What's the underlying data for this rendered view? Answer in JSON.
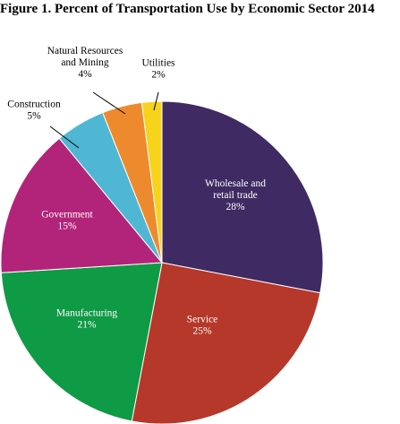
{
  "chart_data": {
    "type": "pie",
    "title": "Figure 1. Percent of Transportation Use by Economic Sector 2014",
    "slices": [
      {
        "name": "Wholesale and retail trade",
        "label_lines": [
          "Wholesale and",
          "retail trade"
        ],
        "pct_label": "28%",
        "value": 28,
        "color": "#3f2a63",
        "text_color": "#ffffff"
      },
      {
        "name": "Service",
        "label_lines": [
          "Service"
        ],
        "pct_label": "25%",
        "value": 25,
        "color": "#b5382b",
        "text_color": "#ffffff"
      },
      {
        "name": "Manufacturing",
        "label_lines": [
          "Manufacturing"
        ],
        "pct_label": "21%",
        "value": 21,
        "color": "#0f9a45",
        "text_color": "#ffffff"
      },
      {
        "name": "Government",
        "label_lines": [
          "Government"
        ],
        "pct_label": "15%",
        "value": 15,
        "color": "#b2247a",
        "text_color": "#ffffff"
      },
      {
        "name": "Construction",
        "label_lines": [
          "Construction"
        ],
        "pct_label": "5%",
        "value": 5,
        "color": "#4fb7d3",
        "text_color": "#000000"
      },
      {
        "name": "Natural Resources and Mining",
        "label_lines": [
          "Natural Resources",
          "and Mining"
        ],
        "pct_label": "4%",
        "value": 4,
        "color": "#ee8a2e",
        "text_color": "#000000"
      },
      {
        "name": "Utilities",
        "label_lines": [
          "Utilities"
        ],
        "pct_label": "2%",
        "value": 2,
        "color": "#f8d31c",
        "text_color": "#000000"
      }
    ]
  }
}
